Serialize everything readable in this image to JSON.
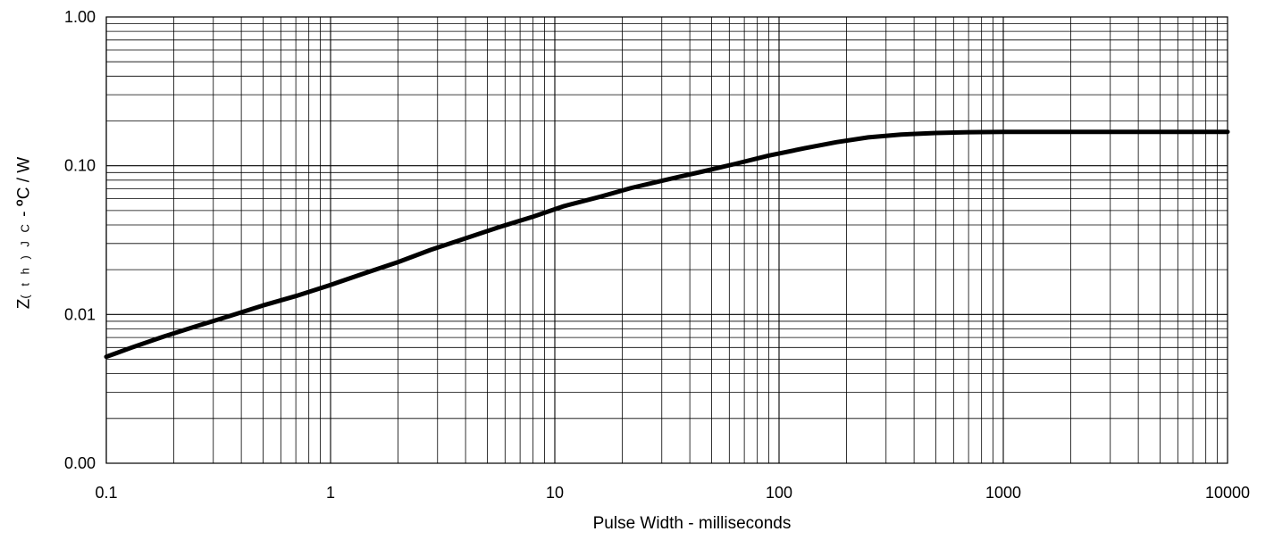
{
  "chart_data": {
    "type": "line",
    "title": "",
    "xlabel": "Pulse Width - milliseconds",
    "ylabel": {
      "main": "Z",
      "sub": "( t h ) J C",
      "sep": " - ",
      "sup": "o",
      "unit": "C / W"
    },
    "x_scale": "log",
    "y_scale": "log",
    "xlim": [
      0.1,
      10000
    ],
    "ylim": [
      0.001,
      1.0
    ],
    "x_ticks": [
      0.1,
      1,
      10,
      100,
      1000,
      10000
    ],
    "x_tick_labels": [
      "0.1",
      "1",
      "10",
      "100",
      "1000",
      "10000"
    ],
    "y_ticks": [
      0.001,
      0.01,
      0.1,
      1.0
    ],
    "y_tick_labels": [
      "0.00",
      "0.01",
      "0.10",
      "1.00"
    ],
    "grid": true,
    "series": [
      {
        "color": "#000000",
        "x": [
          0.1,
          0.13,
          0.18,
          0.25,
          0.35,
          0.5,
          0.7,
          1.0,
          1.4,
          2.0,
          2.8,
          4.0,
          5.6,
          8.0,
          11,
          16,
          22,
          32,
          45,
          64,
          90,
          130,
          180,
          250,
          350,
          500,
          700,
          1000,
          2000,
          5000,
          10000
        ],
        "y": [
          0.0052,
          0.006,
          0.0071,
          0.0083,
          0.0097,
          0.0115,
          0.0133,
          0.0158,
          0.0188,
          0.0225,
          0.0272,
          0.0325,
          0.0385,
          0.0455,
          0.0535,
          0.062,
          0.071,
          0.081,
          0.091,
          0.103,
          0.117,
          0.131,
          0.144,
          0.155,
          0.162,
          0.166,
          0.168,
          0.169,
          0.169,
          0.169,
          0.169
        ]
      }
    ]
  }
}
